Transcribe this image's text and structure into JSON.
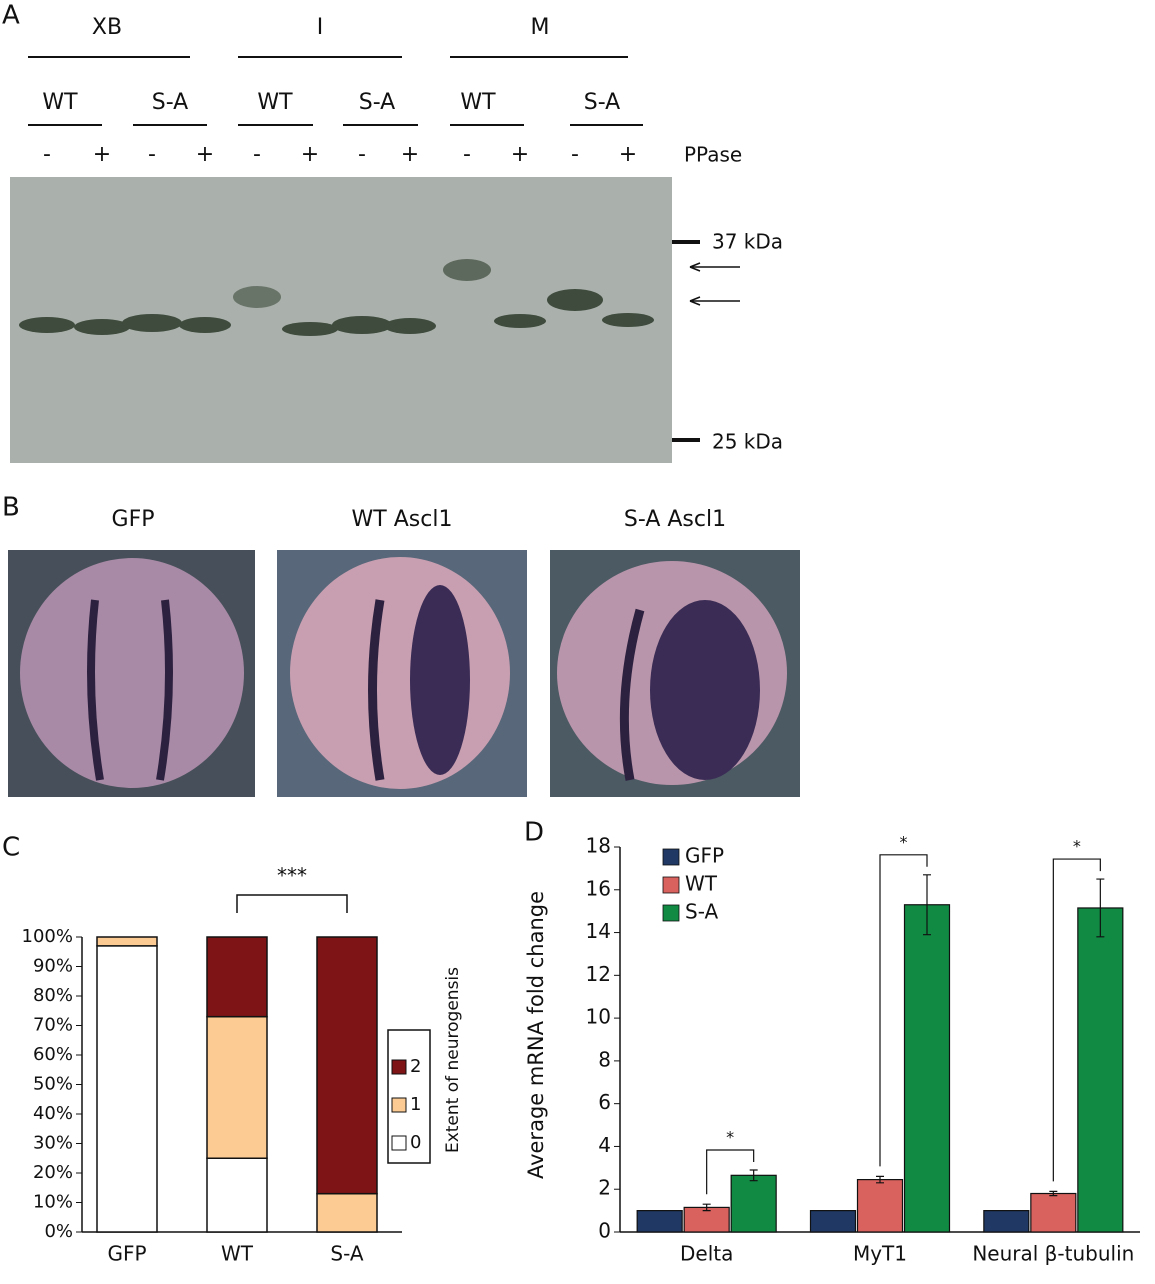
{
  "panels": [
    "A",
    "B",
    "C",
    "D"
  ],
  "blot": {
    "groups": [
      "XB",
      "I",
      "M"
    ],
    "subgroups": [
      "WT",
      "S-A",
      "WT",
      "S-A",
      "WT",
      "S-A"
    ],
    "signs": [
      "-",
      "+",
      "-",
      "+",
      "-",
      "+",
      "-",
      "+",
      "-",
      "+",
      "-",
      "+"
    ],
    "treatment": "PPase",
    "markers": [
      "37  kDa",
      "25  kDa"
    ]
  },
  "embryos": {
    "labels": [
      "GFP",
      "WT Ascl1",
      "S-A Ascl1"
    ]
  },
  "chart_data": [
    {
      "type": "stacked-bar",
      "categories": [
        "GFP",
        "WT",
        "S-A"
      ],
      "series": [
        {
          "name": "0",
          "color": "#ffffff",
          "values": [
            97,
            25,
            0
          ]
        },
        {
          "name": "1",
          "color": "#fccb93",
          "values": [
            3,
            48,
            13
          ]
        },
        {
          "name": "2",
          "color": "#7f1416",
          "values": [
            0,
            27,
            87
          ]
        }
      ],
      "ylim": [
        0,
        100
      ],
      "yticks": [
        {
          "value": 0,
          "label": "0%"
        },
        {
          "value": 10,
          "label": "10%"
        },
        {
          "value": 20,
          "label": "20%"
        },
        {
          "value": 30,
          "label": "30%"
        },
        {
          "value": 40,
          "label": "40%"
        },
        {
          "value": 50,
          "label": "50%"
        },
        {
          "value": 60,
          "label": "60%"
        },
        {
          "value": 70,
          "label": "70%"
        },
        {
          "value": 80,
          "label": "80%"
        },
        {
          "value": 90,
          "label": "90%"
        },
        {
          "value": 100,
          "label": "100%"
        }
      ],
      "legend_title": "Extent of neurogensis",
      "annotation": "***",
      "grid": false
    },
    {
      "type": "bar",
      "categories": [
        "Delta",
        "MyT1",
        "Neural β-tubulin"
      ],
      "series": [
        {
          "name": "GFP",
          "color": "#1f3864",
          "values": [
            1,
            1,
            1
          ]
        },
        {
          "name": "WT",
          "color": "#d9625e",
          "values": [
            1.15,
            2.45,
            1.8
          ],
          "errors": [
            0.15,
            0.15,
            0.1
          ]
        },
        {
          "name": "S-A",
          "color": "#118a44",
          "values": [
            2.65,
            15.3,
            15.15
          ],
          "errors": [
            0.25,
            1.4,
            1.35
          ]
        }
      ],
      "ylabel": "Average mRNA fold change",
      "ylim": [
        0,
        18
      ],
      "yticks": [
        0,
        2,
        4,
        6,
        8,
        10,
        12,
        14,
        16,
        18
      ],
      "annotations": [
        "*",
        "*",
        "*"
      ],
      "grid": false
    }
  ]
}
